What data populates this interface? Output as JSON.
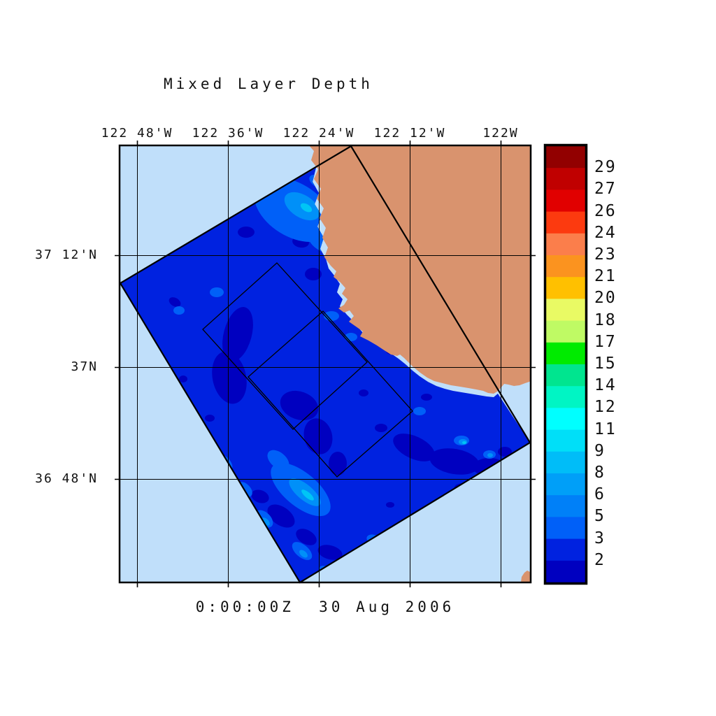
{
  "figure": {
    "title": "Mixed Layer Depth",
    "time_label": "0:00:00Z  30 Aug 2006"
  },
  "chart_data": {
    "type": "heatmap",
    "title": "Mixed Layer Depth",
    "time_label": "0:00:00Z  30 Aug 2006",
    "x_axis": {
      "side": "top",
      "tick_labels": [
        "122 48'W",
        "122 36'W",
        "122 24'W",
        "122 12'W",
        "122W"
      ]
    },
    "y_axis": {
      "side": "left",
      "tick_labels": [
        "37 12'N",
        "37N",
        "36 48'N"
      ]
    },
    "colorbar": {
      "position": "right",
      "tick_labels": [
        "29",
        "27",
        "26",
        "24",
        "23",
        "21",
        "20",
        "18",
        "17",
        "15",
        "14",
        "12",
        "11",
        "9",
        "8",
        "6",
        "5",
        "3",
        "2"
      ],
      "levels": [
        29,
        27,
        26,
        24,
        23,
        21,
        20,
        18,
        17,
        15,
        14,
        12,
        11,
        9,
        8,
        6,
        5,
        3,
        2
      ],
      "band_colors": [
        "#920000",
        "#C00000",
        "#E10000",
        "#FC3A0F",
        "#FB7E4B",
        "#FB931F",
        "#FFC000",
        "#E9FA64",
        "#BFFA64",
        "#00EB00",
        "#00E58F",
        "#00F5C4",
        "#00FFFF",
        "#00DFF8",
        "#00BDF8",
        "#009FF8",
        "#0080F8",
        "#0060F8",
        "#0022E0",
        "#0000C0"
      ]
    },
    "field": {
      "dominant_band": "2-3",
      "deep_patch_band": "<2",
      "shallow_streak_bands": [
        "3-5",
        "5-6",
        "6-8",
        "8-9"
      ],
      "description": "Rotated rectangular swath of mixed-layer-depth data over the ocean next to a coastline; most of the swath lies in the 2-3 band with scattered patches below 2 and brighter shallow streaks of 3-8; land mass in the upper right, pale background ocean elsewhere."
    },
    "overlays": {
      "outer_domain_outline": 1,
      "inner_boxes": 2
    }
  },
  "palette": {
    "ocean_background": "#C0DFFA",
    "land": "#D9936E",
    "field_base": "#0022E0",
    "field_deep": "#0000C0",
    "field_light": "#0060F8",
    "field_lighter": "#0090F8",
    "field_bright": "#00C5F5",
    "line": "#000000"
  }
}
